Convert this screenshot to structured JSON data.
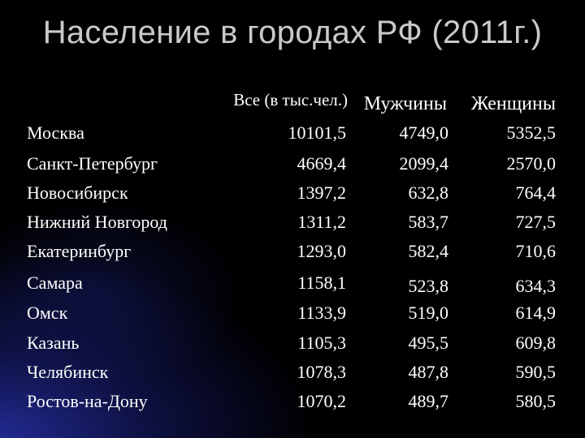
{
  "title": "Население в городах РФ (2011г.)",
  "headers": {
    "total": "Все (в тыс.чел.)",
    "men": "Мужчины",
    "women": "Женщины"
  },
  "rows": [
    {
      "city": "Москва",
      "total": "10101,5",
      "men": "4749,0",
      "women": "5352,5"
    },
    {
      "city": "Санкт-Петербург",
      "total": "4669,4",
      "men": "2099,4",
      "women": "2570,0"
    },
    {
      "city": "Новосибирск",
      "total": "1397,2",
      "men": "632,8",
      "women": "764,4"
    },
    {
      "city": "Нижний Новгород",
      "total": "1311,2",
      "men": "583,7",
      "women": "727,5"
    },
    {
      "city": "Екатеринбург",
      "total": "1293,0",
      "men": "582,4",
      "women": "710,6"
    },
    {
      "city": "Самара",
      "total": "1158,1",
      "men": "523,8",
      "women": "634,3"
    },
    {
      "city": "Омск",
      "total": "1133,9",
      "men": "519,0",
      "women": "614,9"
    },
    {
      "city": "Казань",
      "total": "1105,3",
      "men": "495,5",
      "women": "609,8"
    },
    {
      "city": "Челябинск",
      "total": "1078,3",
      "men": "487,8",
      "women": "590,5"
    },
    {
      "city": "Ростов-на-Дону",
      "total": "1070,2",
      "men": "489,7",
      "women": "580,5"
    }
  ],
  "colors": {
    "background": "#000000",
    "title": "#c9c9c9",
    "text": "#ffffff",
    "accent_glow": "#2832aa"
  }
}
